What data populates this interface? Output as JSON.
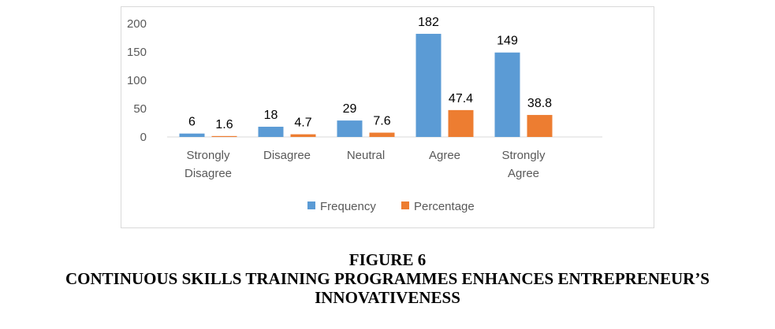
{
  "chart_data": {
    "type": "bar",
    "categories": [
      [
        "Strongly",
        "Disagree"
      ],
      [
        "Disagree"
      ],
      [
        "Neutral"
      ],
      [
        "Agree"
      ],
      [
        "Strongly",
        "Agree"
      ]
    ],
    "series": [
      {
        "name": "Frequency",
        "values": [
          6,
          18,
          29,
          182,
          149
        ],
        "labels": [
          "6",
          "18",
          "29",
          "182",
          "149"
        ],
        "color": "#5b9bd5"
      },
      {
        "name": "Percentage",
        "values": [
          1.6,
          4.7,
          7.6,
          47.4,
          38.8
        ],
        "labels": [
          "1.6",
          "4.7",
          "7.6",
          "47.4",
          "38.8"
        ],
        "color": "#ed7d31"
      }
    ],
    "yticks": [
      "0",
      "50",
      "100",
      "150",
      "200"
    ],
    "ylim": [
      0,
      200
    ],
    "grid": false,
    "legend": "bottom"
  },
  "caption": {
    "figure": "FIGURE 6",
    "title_line1": "CONTINUOUS SKILLS TRAINING PROGRAMMES ENHANCES ENTREPRENEUR’S",
    "title_line2": "INNOVATIVENESS"
  }
}
